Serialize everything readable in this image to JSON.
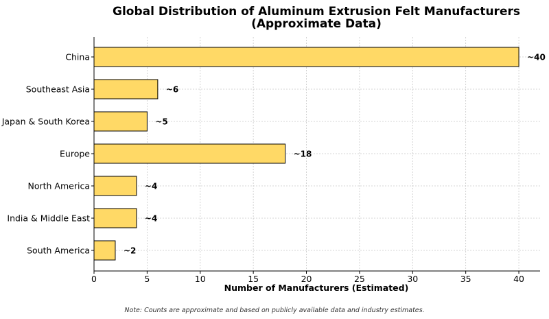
{
  "chart_data": {
    "type": "bar",
    "orientation": "horizontal",
    "title_line1": "Global Distribution of Aluminum Extrusion Felt Manufacturers",
    "title_line2": "(Approximate Data)",
    "xlabel": "Number of Manufacturers (Estimated)",
    "ylabel": "",
    "categories": [
      "China",
      "Southeast Asia",
      "Japan & South Korea",
      "Europe",
      "North America",
      "India & Middle East",
      "South America"
    ],
    "values": [
      40,
      6,
      5,
      18,
      4,
      4,
      2
    ],
    "data_labels": [
      "~40",
      "~6",
      "~5",
      "~18",
      "~4",
      "~4",
      "~2"
    ],
    "xlim": [
      0,
      42
    ],
    "xticks": [
      0,
      5,
      10,
      15,
      20,
      25,
      30,
      35,
      40
    ],
    "grid": true,
    "bar_color": "#FFD966",
    "bar_edge_color": "#000000",
    "note": "Note: Counts are approximate and based on publicly available data and industry estimates."
  }
}
